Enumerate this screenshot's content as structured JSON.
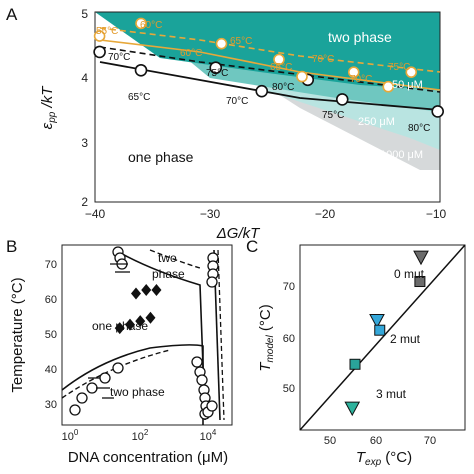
{
  "colors": {
    "teal_dark": "#1aa39a",
    "teal_mid": "#6fc7c0",
    "teal_light": "#b9e4e1",
    "gray_band": "#d6d9da",
    "orange": "#e7a83a",
    "black": "#111111",
    "triangle_gray": "#6b6b6b",
    "square_gray": "#6b6b6b",
    "triangle_blue": "#34a7d9",
    "square_teal": "#2aa39a",
    "triangle_teal": "#2db29c"
  },
  "panelA": {
    "panel_letter": "A",
    "xlabel": "ΔG/kT",
    "ylabel": "ε",
    "ylabel_sub": "pp",
    "ylabel_tail": " /kT",
    "xticks": [
      "−40",
      "−30",
      "−20",
      "−10"
    ],
    "yticks": [
      "2",
      "3",
      "4",
      "5"
    ],
    "region_two_phase": "two phase",
    "region_one_phase": "one phase",
    "conc_labels": [
      "50 μM",
      "250 μM",
      "1000 μM"
    ],
    "black_temps": [
      "70°C",
      "65°C",
      "75°C",
      "70°C",
      "80°C",
      "75°C",
      "80°C"
    ],
    "orange_temps": [
      "55°C",
      "60°C",
      "65°C",
      "60°C",
      "70°C",
      "65°C",
      "70°C",
      "75°C"
    ]
  },
  "panelB": {
    "panel_letter": "B",
    "xlabel": "DNA concentration (μM)",
    "ylabel": "Temperature (°C)",
    "xticks": [
      "10",
      "10",
      "10"
    ],
    "xtick_exps": [
      "0",
      "2",
      "4"
    ],
    "yticks": [
      "30",
      "40",
      "50",
      "60",
      "70"
    ],
    "labels": [
      "two",
      "phase",
      "one phase",
      "two phase"
    ]
  },
  "panelC": {
    "panel_letter": "C",
    "xlabel": "T",
    "xlabel_sub": "exp",
    "xlabel_tail": " (°C)",
    "ylabel": "T",
    "ylabel_sub": "model",
    "ylabel_tail": " (°C)",
    "xticks": [
      "50",
      "60",
      "70"
    ],
    "yticks": [
      "50",
      "60",
      "70"
    ],
    "labels": [
      "0 mut",
      "2 mut",
      "3 mut"
    ]
  },
  "chart_data": [
    {
      "type": "line",
      "panel": "A",
      "xlabel": "ΔG/kT",
      "ylabel": "εpp/kT",
      "xlim": [
        -40,
        -10
      ],
      "ylim": [
        2,
        5
      ],
      "series": [
        {
          "color": "black",
          "x": [
            -39.6,
            -36.0,
            -29.5,
            -25.5,
            -21.5,
            -18.5,
            -10.2
          ],
          "y": [
            4.37,
            4.08,
            4.12,
            3.75,
            3.93,
            3.62,
            3.43
          ]
        },
        {
          "color": "orange",
          "x": [
            -39.6,
            -36.0,
            -29.0,
            -24.0,
            -22.0,
            -17.5,
            -14.5,
            -12.5
          ],
          "y": [
            4.62,
            4.82,
            4.5,
            4.25,
            3.98,
            4.05,
            3.82,
            4.05
          ]
        }
      ]
    },
    {
      "type": "scatter",
      "panel": "B",
      "xlabel": "DNA concentration (μM)",
      "ylabel": "Temperature (°C)",
      "xscale": "log",
      "xlim": [
        1,
        100000
      ],
      "ylim": [
        25,
        77
      ],
      "series": [
        {
          "marker": "diamond",
          "x": [
            50,
            100,
            200,
            400
          ],
          "y": [
            53,
            54,
            55,
            56
          ]
        },
        {
          "marker": "diamond",
          "x": [
            150,
            300,
            600
          ],
          "y": [
            63,
            64,
            64
          ]
        }
      ]
    },
    {
      "type": "scatter",
      "panel": "C",
      "xlabel": "Texp (°C)",
      "ylabel": "Tmodel (°C)",
      "xlim": [
        45,
        75
      ],
      "ylim": [
        40,
        78
      ],
      "series": [
        {
          "marker": "triangle-down",
          "label": "0 mut",
          "x": [
            67.0
          ],
          "y": [
            75.5
          ]
        },
        {
          "marker": "square",
          "label": "0 mut",
          "x": [
            66.8
          ],
          "y": [
            70.5
          ]
        },
        {
          "marker": "triangle-down",
          "label": "2 mut",
          "x": [
            59.0
          ],
          "y": [
            62.5
          ]
        },
        {
          "marker": "square",
          "label": "2 mut",
          "x": [
            59.5
          ],
          "y": [
            60.5
          ]
        },
        {
          "marker": "square",
          "label": "3 mut",
          "x": [
            55.0
          ],
          "y": [
            53.5
          ]
        },
        {
          "marker": "triangle-down",
          "label": "3 mut",
          "x": [
            54.5
          ],
          "y": [
            44.5
          ]
        }
      ]
    }
  ]
}
